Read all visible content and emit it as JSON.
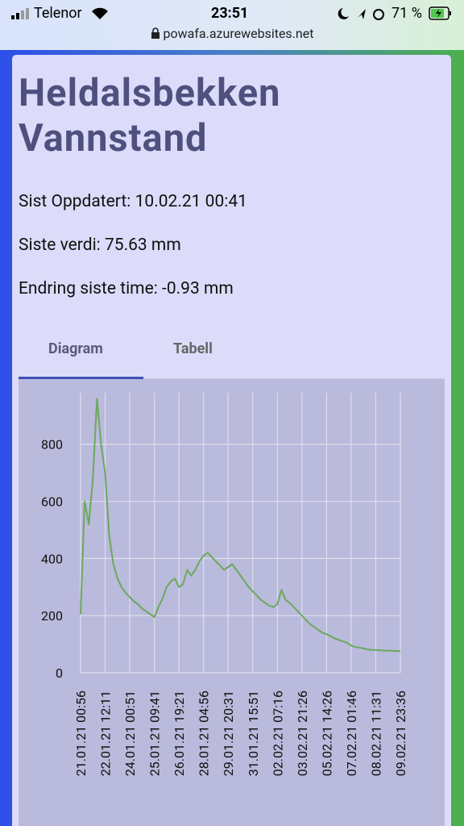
{
  "status_bar": {
    "carrier": "Telenor",
    "time": "23:51",
    "battery": "71 %"
  },
  "url": "powafa.azurewebsites.net",
  "header": {
    "title_lines": [
      "Heldalsbekken",
      "Vannstand"
    ]
  },
  "info": [
    "Sist Oppdatert: 10.02.21 00:41",
    "Siste verdi: 75.63 mm",
    "Endring siste time: -0.93 mm"
  ],
  "tabs": [
    "Diagram",
    "Tabell"
  ],
  "chart_data": {
    "type": "line",
    "categories": [
      "21.01.21 00:56",
      null,
      null,
      null,
      null,
      null,
      "22.01.21 12:11",
      null,
      null,
      null,
      null,
      null,
      "24.01.21 00:51",
      null,
      null,
      null,
      null,
      null,
      "25.01.21 09:41",
      null,
      null,
      null,
      null,
      null,
      "26.01.21 19:21",
      null,
      null,
      null,
      null,
      null,
      "28.01.21 04:56",
      null,
      null,
      null,
      null,
      null,
      "29.01.21 20:31",
      null,
      null,
      null,
      null,
      null,
      "31.01.21 15:51",
      null,
      null,
      null,
      null,
      null,
      "02.02.21 07:16",
      null,
      null,
      null,
      null,
      null,
      "03.02.21 21:26",
      null,
      null,
      null,
      null,
      null,
      "05.02.21 14:26",
      null,
      null,
      null,
      null,
      null,
      "07.02.21 01:46",
      null,
      null,
      null,
      null,
      null,
      "08.02.21 11:31",
      null,
      null,
      null,
      null,
      null,
      "09.02.21 23:36"
    ],
    "series": [
      {
        "color": "#6aa95c",
        "values": [
          205,
          600,
          520,
          680,
          960,
          800,
          700,
          480,
          380,
          330,
          300,
          280,
          265,
          250,
          240,
          225,
          215,
          205,
          195,
          230,
          260,
          300,
          320,
          330,
          300,
          310,
          360,
          340,
          360,
          390,
          410,
          420,
          405,
          390,
          375,
          360,
          370,
          380,
          360,
          340,
          320,
          300,
          285,
          270,
          255,
          245,
          235,
          230,
          240,
          290,
          255,
          245,
          230,
          215,
          200,
          185,
          170,
          160,
          150,
          140,
          135,
          128,
          120,
          115,
          110,
          105,
          95,
          90,
          88,
          85,
          82,
          80,
          80,
          78,
          78,
          77,
          77,
          76,
          76
        ]
      }
    ],
    "ylim": [
      0,
      980
    ],
    "yticks": [
      0,
      200,
      400,
      600,
      800
    ],
    "grid": true
  }
}
